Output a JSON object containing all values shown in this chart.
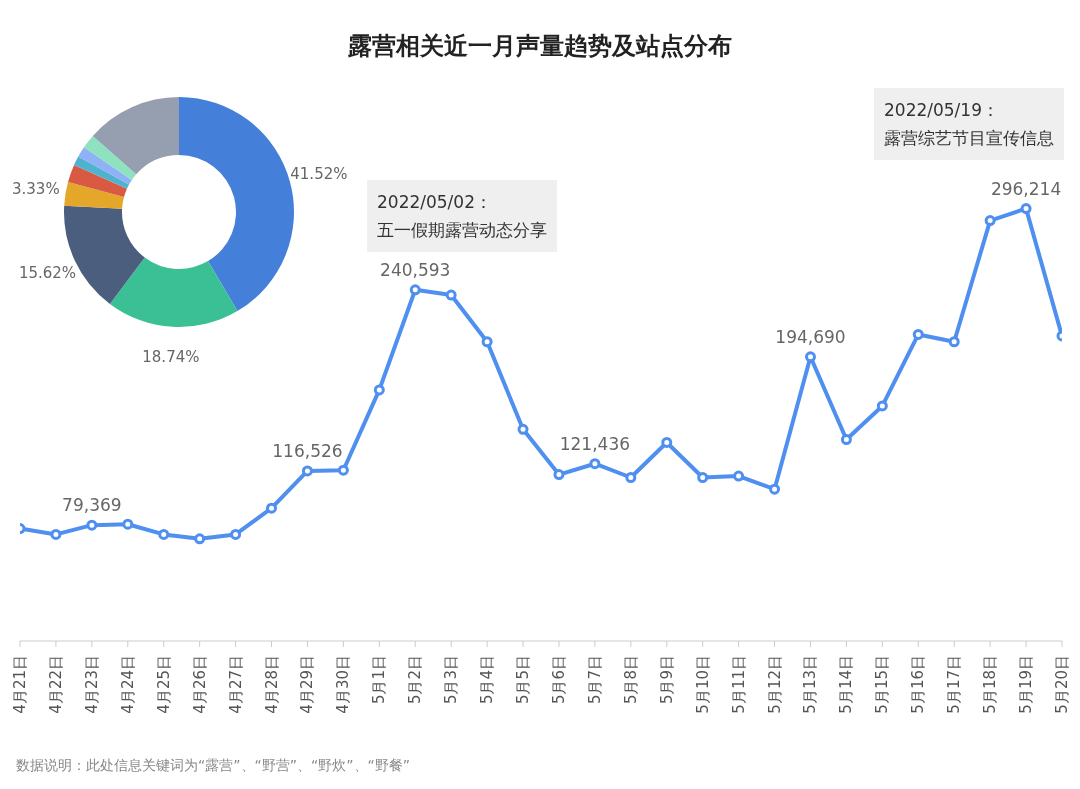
{
  "chart_data": [
    {
      "type": "line",
      "title": "露营相关近一月声量趋势及站点分布",
      "categories": [
        "4月21日",
        "4月22日",
        "4月23日",
        "4月24日",
        "4月25日",
        "4月26日",
        "4月27日",
        "4月28日",
        "4月29日",
        "4月30日",
        "5月1日",
        "5月2日",
        "5月3日",
        "5月4日",
        "5月5日",
        "5月6日",
        "5月7日",
        "5月8日",
        "5月9日",
        "5月10日",
        "5月11日",
        "5月12日",
        "5月13日",
        "5月14日",
        "5月15日",
        "5月16日",
        "5月17日",
        "5月18日",
        "5月19日",
        "5月20日"
      ],
      "series": [
        {
          "color": "#4e8ff0",
          "values": [
            77000,
            73000,
            79369,
            80000,
            73000,
            70000,
            73000,
            91000,
            116526,
            117000,
            172000,
            240593,
            237000,
            205000,
            145000,
            114000,
            121436,
            112000,
            136000,
            112000,
            113000,
            104000,
            194690,
            138000,
            161000,
            210000,
            205000,
            288000,
            296214,
            209000
          ],
          "value_labels": [
            null,
            null,
            "79,369",
            null,
            null,
            null,
            null,
            null,
            "116,526",
            null,
            null,
            "240,593",
            null,
            null,
            null,
            null,
            "121,436",
            null,
            null,
            null,
            null,
            null,
            "194,690",
            null,
            null,
            null,
            null,
            null,
            "296,214",
            null
          ]
        }
      ],
      "marker": "circle",
      "line_style": "solid",
      "annotations": [
        "2022/05/02：五一假期露营动态分享",
        "2022/05/19：露营综艺节目宣传信息",
        "数据说明：此处信息关键词为“露营”、“野营”、“野炊”、“野餐”"
      ]
    },
    {
      "type": "donut",
      "categories": [
        null,
        null,
        null,
        null,
        null,
        null,
        null,
        null,
        null
      ],
      "values": [
        41.52,
        18.74,
        15.62,
        3.33,
        2.5,
        1.3,
        1.5,
        2,
        13.49
      ],
      "colors": [
        "#4480da",
        "#3bc095",
        "#4c5e7e",
        "#e4a72a",
        "#d95a43",
        "#4fb2cf",
        "#8fb1f5",
        "#8fe2c0",
        "#959fb0"
      ],
      "value_labels": [
        "41.52%",
        "18.74%",
        "15.62%",
        "3.33%",
        null,
        null,
        null,
        null,
        null
      ]
    }
  ]
}
